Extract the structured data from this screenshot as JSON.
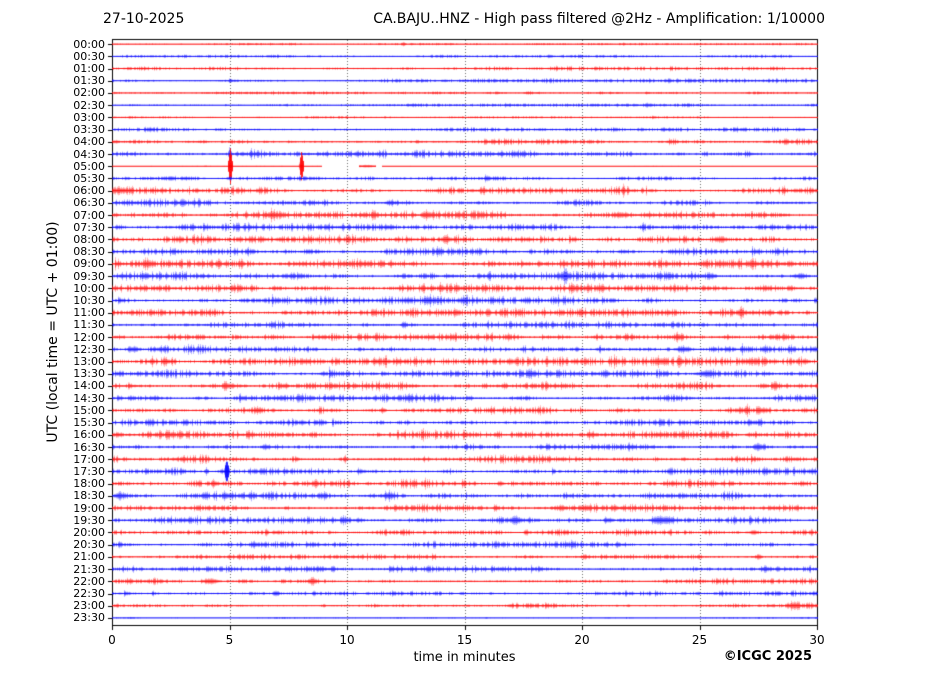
{
  "chart_data": {
    "type": "line",
    "subtype": "helicorder-seismogram",
    "title_left": "27-10-2025",
    "title_right": "CA.BAJU..HNZ - High pass filtered @2Hz - Amplification: 1/10000",
    "xlabel": "time in minutes",
    "ylabel": "UTC (local time = UTC + 01:00)",
    "credit": "©ICGC 2025",
    "xlim": [
      0,
      30
    ],
    "x_ticks": [
      0,
      5,
      10,
      15,
      20,
      25,
      30
    ],
    "minutes_per_row": 30,
    "grid": "vertical-dotted-every-5-min",
    "legend": "none",
    "trace_colors": {
      "red": "#ff0000",
      "blue": "#0000ff"
    },
    "grid_color": "#6b6b6b",
    "axis_color": "#000000",
    "rows": [
      {
        "label": "00:00",
        "color": "red",
        "amp": 0.5,
        "events": [
          {
            "t": 12.4,
            "a": 2.0,
            "w": 0.06
          }
        ]
      },
      {
        "label": "00:30",
        "color": "blue",
        "amp": 0.7,
        "events": []
      },
      {
        "label": "01:00",
        "color": "red",
        "amp": 1.0,
        "events": []
      },
      {
        "label": "01:30",
        "color": "blue",
        "amp": 1.0,
        "events": []
      },
      {
        "label": "02:00",
        "color": "red",
        "amp": 0.8,
        "events": []
      },
      {
        "label": "02:30",
        "color": "blue",
        "amp": 0.7,
        "events": []
      },
      {
        "label": "03:00",
        "color": "red",
        "amp": 0.5,
        "events": []
      },
      {
        "label": "03:30",
        "color": "blue",
        "amp": 1.0,
        "events": []
      },
      {
        "label": "04:00",
        "color": "red",
        "amp": 1.3,
        "events": []
      },
      {
        "label": "04:30",
        "color": "blue",
        "amp": 1.6,
        "events": [
          {
            "t": 5.0,
            "a": 5.0,
            "w": 0.05
          }
        ]
      },
      {
        "label": "05:00",
        "color": "red",
        "amp": 0.18,
        "segments": [
          [
            0,
            8.92
          ],
          [
            10.5,
            11.2
          ],
          [
            11.45,
            30
          ]
        ],
        "events": [
          {
            "t": 5.02,
            "a": 18,
            "w": 0.06
          },
          {
            "t": 8.05,
            "a": 15,
            "w": 0.06
          },
          {
            "t": 10.85,
            "a": 1.1,
            "w": 0.35
          }
        ]
      },
      {
        "label": "05:30",
        "color": "blue",
        "amp": 1.0,
        "events": [
          {
            "t": 5.0,
            "a": 2.2,
            "w": 0.05
          }
        ]
      },
      {
        "label": "06:00",
        "color": "red",
        "amp": 1.6,
        "events": [
          {
            "t": 3.6,
            "a": 2.5,
            "w": 0.05
          },
          {
            "t": 15.8,
            "a": 3.0,
            "w": 0.06
          }
        ]
      },
      {
        "label": "06:30",
        "color": "blue",
        "amp": 1.7,
        "events": []
      },
      {
        "label": "07:00",
        "color": "red",
        "amp": 1.8,
        "events": [
          {
            "t": 6.8,
            "a": 2.5,
            "w": 0.2
          },
          {
            "t": 13.4,
            "a": 3.0,
            "w": 0.15
          }
        ]
      },
      {
        "label": "07:30",
        "color": "blue",
        "amp": 1.7,
        "events": [
          {
            "t": 22.6,
            "a": 3.5,
            "w": 0.06
          }
        ]
      },
      {
        "label": "08:00",
        "color": "red",
        "amp": 1.9,
        "events": [
          {
            "t": 14.2,
            "a": 3.0,
            "w": 0.15
          },
          {
            "t": 25.9,
            "a": 2.6,
            "w": 0.25
          }
        ]
      },
      {
        "label": "08:30",
        "color": "blue",
        "amp": 1.7,
        "events": [
          {
            "t": 13.9,
            "a": 2.5,
            "w": 0.1
          }
        ]
      },
      {
        "label": "09:00",
        "color": "red",
        "amp": 1.9,
        "events": [
          {
            "t": 1.5,
            "a": 2.5,
            "w": 0.2
          },
          {
            "t": 5.5,
            "a": 2.5,
            "w": 0.1
          },
          {
            "t": 27.2,
            "a": 2.4,
            "w": 0.2
          }
        ]
      },
      {
        "label": "09:30",
        "color": "blue",
        "amp": 1.8,
        "events": [
          {
            "t": 25.5,
            "a": 2.5,
            "w": 0.15
          },
          {
            "t": 29.3,
            "a": 2.4,
            "w": 0.2
          }
        ]
      },
      {
        "label": "10:00",
        "color": "red",
        "amp": 1.9,
        "events": [
          {
            "t": 20.8,
            "a": 2.5,
            "w": 0.15
          }
        ]
      },
      {
        "label": "10:30",
        "color": "blue",
        "amp": 1.7,
        "events": [
          {
            "t": 13.5,
            "a": 2.2,
            "w": 0.15
          }
        ]
      },
      {
        "label": "11:00",
        "color": "red",
        "amp": 1.8,
        "events": []
      },
      {
        "label": "11:30",
        "color": "blue",
        "amp": 1.6,
        "events": [
          {
            "t": 12.4,
            "a": 2.2,
            "w": 0.1
          }
        ]
      },
      {
        "label": "12:00",
        "color": "red",
        "amp": 1.8,
        "events": [
          {
            "t": 24.1,
            "a": 2.4,
            "w": 0.15
          }
        ]
      },
      {
        "label": "12:30",
        "color": "blue",
        "amp": 1.9,
        "events": [
          {
            "t": 0.9,
            "a": 2.4,
            "w": 0.2
          },
          {
            "t": 24.3,
            "a": 2.2,
            "w": 0.2
          }
        ]
      },
      {
        "label": "13:00",
        "color": "red",
        "amp": 1.9,
        "events": [
          {
            "t": 1.7,
            "a": 3.2,
            "w": 0.05
          },
          {
            "t": 11.6,
            "a": 3.0,
            "w": 0.05
          },
          {
            "t": 23.3,
            "a": 2.2,
            "w": 0.15
          }
        ]
      },
      {
        "label": "13:30",
        "color": "blue",
        "amp": 1.8,
        "events": [
          {
            "t": 17.8,
            "a": 2.5,
            "w": 0.06
          },
          {
            "t": 25.3,
            "a": 2.8,
            "w": 0.25
          }
        ]
      },
      {
        "label": "14:00",
        "color": "red",
        "amp": 1.9,
        "events": [
          {
            "t": 4.9,
            "a": 2.2,
            "w": 0.15
          }
        ]
      },
      {
        "label": "14:30",
        "color": "blue",
        "amp": 1.7,
        "events": [
          {
            "t": 12.6,
            "a": 2.2,
            "w": 0.1
          }
        ]
      },
      {
        "label": "15:00",
        "color": "red",
        "amp": 1.9,
        "events": [
          {
            "t": 11.5,
            "a": 2.5,
            "w": 0.08
          },
          {
            "t": 27.0,
            "a": 3.2,
            "w": 0.06
          }
        ]
      },
      {
        "label": "15:30",
        "color": "blue",
        "amp": 1.6,
        "events": [
          {
            "t": 8.9,
            "a": 2.2,
            "w": 0.1
          }
        ]
      },
      {
        "label": "16:00",
        "color": "red",
        "amp": 1.8,
        "events": [
          {
            "t": 13.2,
            "a": 3.0,
            "w": 0.05
          },
          {
            "t": 20.3,
            "a": 3.0,
            "w": 0.05
          }
        ]
      },
      {
        "label": "16:30",
        "color": "blue",
        "amp": 1.8,
        "events": [
          {
            "t": 6.5,
            "a": 2.5,
            "w": 0.1
          },
          {
            "t": 27.5,
            "a": 2.5,
            "w": 0.15
          }
        ]
      },
      {
        "label": "17:00",
        "color": "red",
        "amp": 1.8,
        "events": [
          {
            "t": 9.9,
            "a": 2.8,
            "w": 0.05
          }
        ]
      },
      {
        "label": "17:30",
        "color": "blue",
        "amp": 1.8,
        "events": [
          {
            "t": 4.0,
            "a": 3.5,
            "w": 0.05
          },
          {
            "t": 4.87,
            "a": 11,
            "w": 0.07
          }
        ]
      },
      {
        "label": "18:00",
        "color": "red",
        "amp": 1.9,
        "events": [
          {
            "t": 4.3,
            "a": 4.0,
            "w": 0.06
          },
          {
            "t": 16.5,
            "a": 2.2,
            "w": 0.1
          }
        ]
      },
      {
        "label": "18:30",
        "color": "blue",
        "amp": 1.9,
        "events": [
          {
            "t": 0.3,
            "a": 2.5,
            "w": 0.15
          },
          {
            "t": 11.8,
            "a": 2.4,
            "w": 0.2
          }
        ]
      },
      {
        "label": "19:00",
        "color": "red",
        "amp": 1.7,
        "events": [
          {
            "t": 19.1,
            "a": 2.2,
            "w": 0.15
          }
        ]
      },
      {
        "label": "19:30",
        "color": "blue",
        "amp": 1.7,
        "events": [
          {
            "t": 17.2,
            "a": 2.4,
            "w": 0.25
          },
          {
            "t": 23.4,
            "a": 3.0,
            "w": 0.35
          }
        ]
      },
      {
        "label": "20:00",
        "color": "red",
        "amp": 1.5,
        "events": [
          {
            "t": 27.3,
            "a": 2.2,
            "w": 0.15
          }
        ]
      },
      {
        "label": "20:30",
        "color": "blue",
        "amp": 1.4,
        "events": [
          {
            "t": 6.0,
            "a": 2.2,
            "w": 0.1
          }
        ]
      },
      {
        "label": "21:00",
        "color": "red",
        "amp": 1.4,
        "events": [
          {
            "t": 27.5,
            "a": 2.4,
            "w": 0.1
          }
        ]
      },
      {
        "label": "21:30",
        "color": "blue",
        "amp": 1.4,
        "events": [
          {
            "t": 27.8,
            "a": 2.2,
            "w": 0.15
          }
        ]
      },
      {
        "label": "22:00",
        "color": "red",
        "amp": 1.4,
        "events": [
          {
            "t": 4.2,
            "a": 2.6,
            "w": 0.25
          },
          {
            "t": 8.5,
            "a": 2.2,
            "w": 0.15
          }
        ]
      },
      {
        "label": "22:30",
        "color": "blue",
        "amp": 1.2,
        "events": [
          {
            "t": 7.0,
            "a": 2.2,
            "w": 0.1
          }
        ]
      },
      {
        "label": "23:00",
        "color": "red",
        "amp": 1.3,
        "events": [
          {
            "t": 29.0,
            "a": 2.6,
            "w": 0.2
          }
        ]
      },
      {
        "label": "23:30",
        "color": "blue",
        "amp": 0.45,
        "events": []
      }
    ]
  }
}
